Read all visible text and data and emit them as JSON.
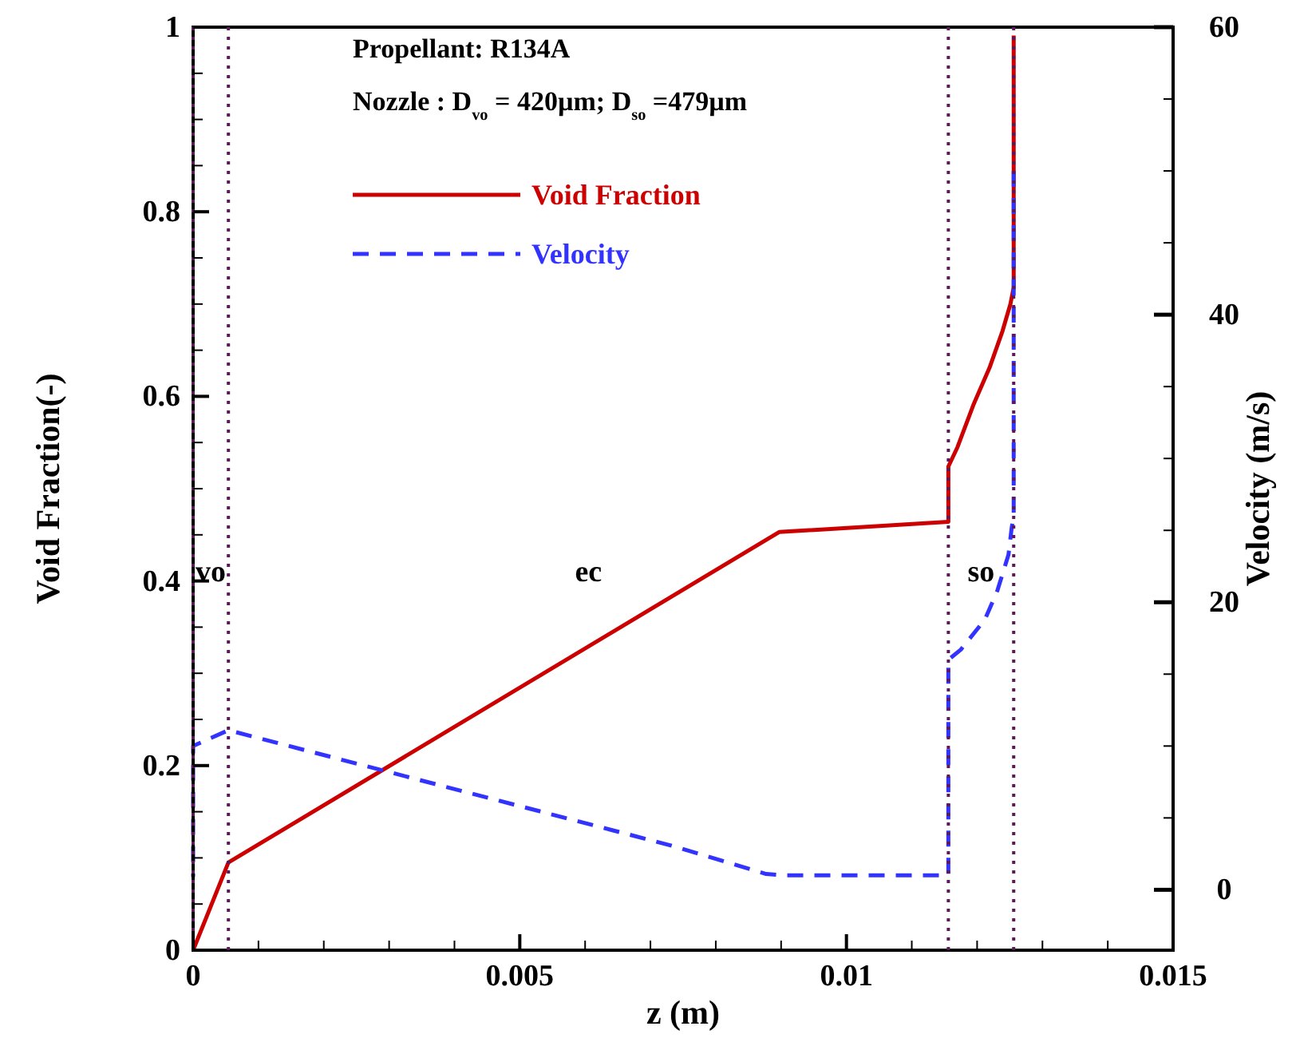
{
  "chart_data": {
    "type": "line",
    "xlabel": "z (m)",
    "ylabel": "Void Fraction(-)",
    "y2label": "Velocity (m/s)",
    "xlim": [
      0,
      0.015
    ],
    "ylim": [
      0,
      1
    ],
    "y2lim": [
      -4.2,
      60
    ],
    "xticks": [
      0,
      {
        "value": 0.001,
        "label": null
      },
      {
        "value": 0.002,
        "label": null
      },
      {
        "value": 0.003,
        "label": null
      },
      {
        "value": 0.004,
        "label": null
      },
      0.005,
      {
        "value": 0.006,
        "label": null
      },
      {
        "value": 0.007,
        "label": null
      },
      {
        "value": 0.008,
        "label": null
      },
      {
        "value": 0.009,
        "label": null
      },
      0.01,
      {
        "value": 0.011,
        "label": null
      },
      {
        "value": 0.012,
        "label": null
      },
      {
        "value": 0.013,
        "label": null
      },
      {
        "value": 0.014,
        "label": null
      },
      0.015
    ],
    "yticks": [
      0,
      {
        "value": 0.05,
        "label": null
      },
      {
        "value": 0.1,
        "label": null
      },
      {
        "value": 0.15,
        "label": null
      },
      0.2,
      {
        "value": 0.25,
        "label": null
      },
      {
        "value": 0.3,
        "label": null
      },
      {
        "value": 0.35,
        "label": null
      },
      0.4,
      {
        "value": 0.45,
        "label": null
      },
      {
        "value": 0.5,
        "label": null
      },
      {
        "value": 0.55,
        "label": null
      },
      0.6,
      {
        "value": 0.65,
        "label": null
      },
      {
        "value": 0.7,
        "label": null
      },
      {
        "value": 0.75,
        "label": null
      },
      0.8,
      {
        "value": 0.85,
        "label": null
      },
      {
        "value": 0.9,
        "label": null
      },
      {
        "value": 0.95,
        "label": null
      },
      1
    ],
    "y2ticks": [
      0,
      {
        "value": 5,
        "label": null
      },
      {
        "value": 10,
        "label": null
      },
      {
        "value": 15,
        "label": null
      },
      20,
      {
        "value": 25,
        "label": null
      },
      {
        "value": 30,
        "label": null
      },
      {
        "value": 35,
        "label": null
      },
      40,
      {
        "value": 45,
        "label": null
      },
      {
        "value": 50,
        "label": null
      },
      {
        "value": 55,
        "label": null
      },
      60
    ],
    "grid": false,
    "legend": "top left",
    "series": [
      {
        "name": "Void Fraction",
        "color": "#cc0000",
        "line_style": "solid",
        "x": [
          0,
          0.00054,
          0.00897,
          0.01156,
          0.01156,
          0.0117,
          0.01195,
          0.01219,
          0.01239,
          0.01251,
          0.01256,
          0.01256
        ],
        "values": [
          0,
          0.095,
          0.453,
          0.464,
          0.524,
          0.545,
          0.592,
          0.631,
          0.671,
          0.7,
          0.718,
          0.991
        ]
      },
      {
        "name": "Velocity",
        "color": "#3333ff",
        "line_style": "dashed",
        "axis": "y2",
        "x": [
          0,
          0,
          0.00054,
          0.0073,
          0.00877,
          0.00906,
          0.01156,
          0.01156,
          0.01175,
          0.01212,
          0.01231,
          0.01248,
          0.01253,
          0.01256,
          0.01256
        ],
        "values": [
          0.9,
          10,
          11.1,
          3.1,
          1.1,
          1,
          1,
          16,
          16.7,
          18.8,
          20.8,
          23.3,
          25.2,
          26,
          50
        ]
      }
    ],
    "ref_lines": [
      {
        "axis": "x",
        "value": 0,
        "color": "#5a1a5a",
        "line_style": "dotted"
      },
      {
        "axis": "x",
        "value": 0.00054,
        "color": "#5a1a5a",
        "line_style": "dotted"
      },
      {
        "axis": "x",
        "value": 0.01156,
        "color": "#5a1a5a",
        "line_style": "dotted"
      },
      {
        "axis": "x",
        "value": 0.01256,
        "color": "#5a1a5a",
        "line_style": "dotted"
      }
    ],
    "annotations": [
      "Propellant: R134A",
      "Nozzle : D$_{vo}$= 420µm; D$_{so}$ =479µm",
      "vo",
      "ec",
      "so"
    ]
  }
}
